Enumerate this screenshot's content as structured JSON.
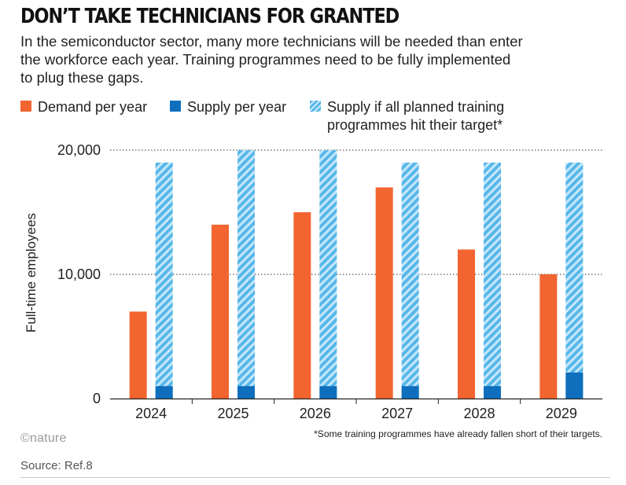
{
  "title": "DON’T TAKE TECHNICIANS FOR GRANTED",
  "subtitle": "In the semiconductor sector, many more technicians will be needed than enter the workforce each year. Training programmes need to be fully implemented to plug these gaps.",
  "legend": [
    {
      "label": "Demand per year",
      "color": "#f26430"
    },
    {
      "label": "Supply per year",
      "color": "#0f6fbd"
    },
    {
      "label": "Supply if all planned training programmes hit their target*",
      "color": "#57b7ea"
    }
  ],
  "footnote": "*Some training programmes have already fallen short of their targets.",
  "logo": "©nature",
  "source": "Source: Ref.8",
  "chart_data": {
    "type": "bar",
    "categories": [
      "2024",
      "2025",
      "2026",
      "2027",
      "2028",
      "2029"
    ],
    "series": [
      {
        "name": "Demand per year",
        "values": [
          7000,
          14000,
          15000,
          17000,
          12000,
          10000
        ],
        "color": "#f26430"
      },
      {
        "name": "Supply per year",
        "values": [
          1000,
          1000,
          1000,
          1000,
          1000,
          2100
        ],
        "color": "#0f6fbd"
      },
      {
        "name": "Supply if all planned training programmes hit their target*",
        "values": [
          19000,
          20000,
          20000,
          19000,
          19000,
          19000
        ],
        "color": "#57b7ea"
      }
    ],
    "ylabel": "Full-time employees",
    "xlabel": "",
    "ylim": [
      0,
      20000
    ],
    "yticks": [
      0,
      10000,
      20000
    ],
    "ytick_labels": [
      "0",
      "10,000",
      "20,000"
    ],
    "grid": "dotted horizontal",
    "legend_position": "top"
  }
}
